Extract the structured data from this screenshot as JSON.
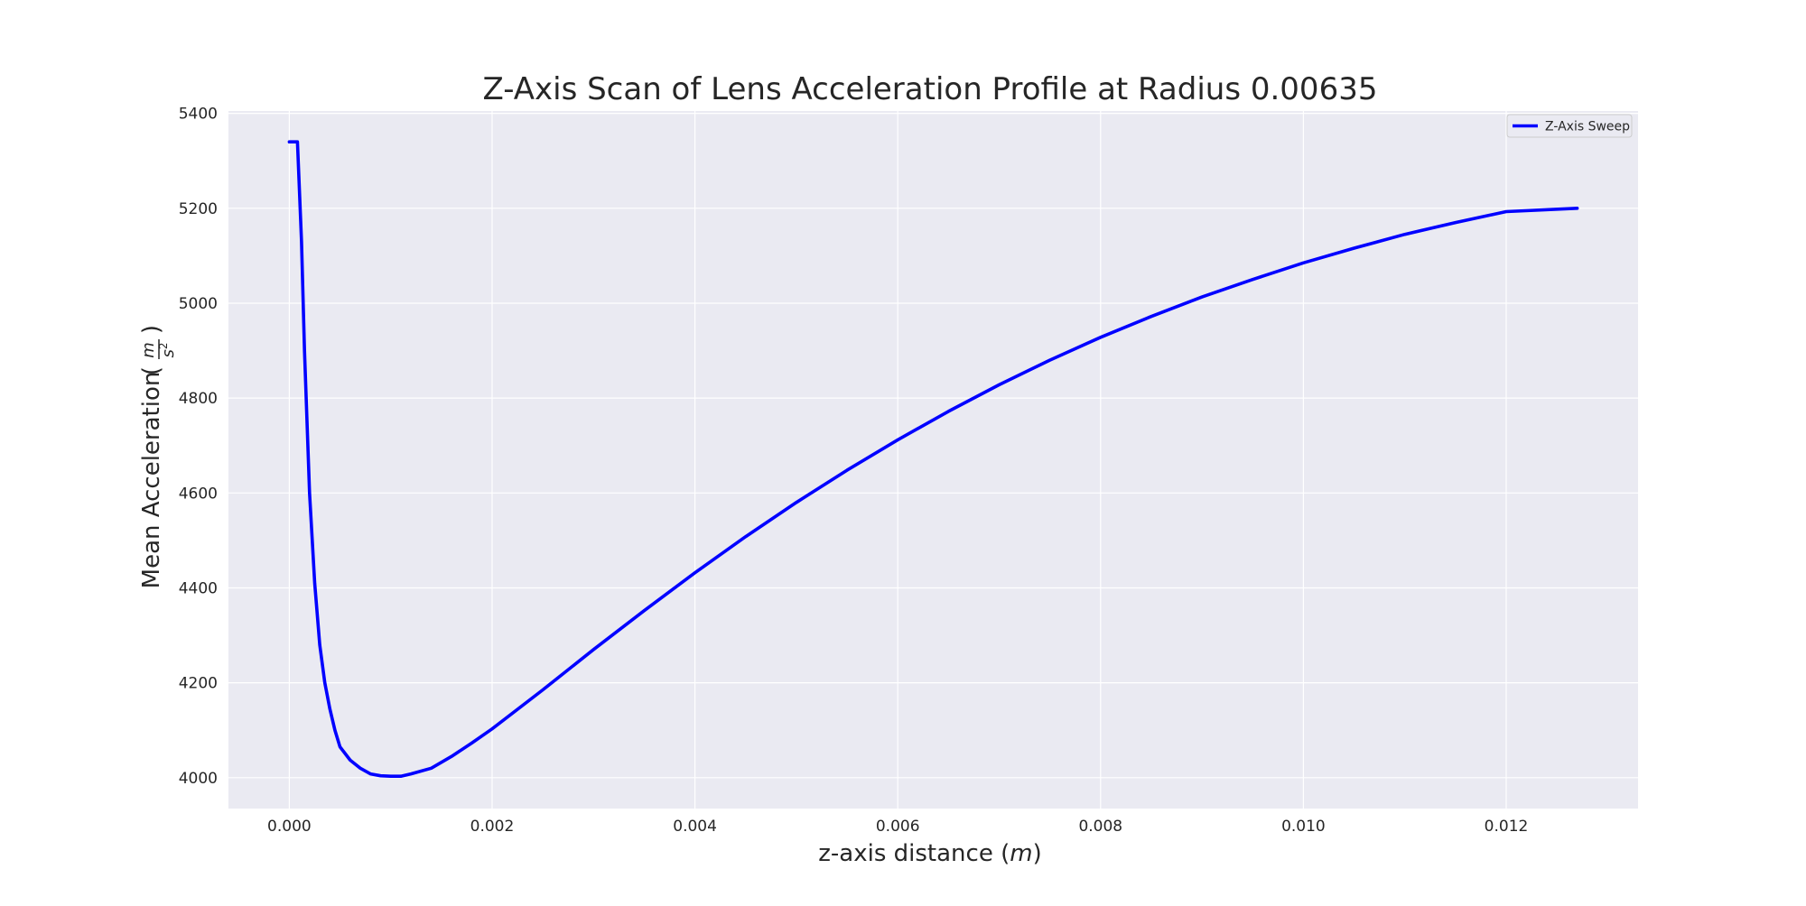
{
  "chart_data": {
    "type": "line",
    "title": "Z-Axis Scan of Lens Acceleration Profile at Radius 0.00635",
    "xlabel": "z-axis distance",
    "xlabel_unit": "m",
    "ylabel": "Mean Acceleration",
    "ylabel_unit_numerator": "m",
    "ylabel_unit_denominator": "s",
    "ylabel_unit_exponent": "2",
    "xlim": [
      -0.0006,
      0.0133
    ],
    "ylim": [
      3935,
      5405
    ],
    "x_ticks": [
      0.0,
      0.002,
      0.004,
      0.006,
      0.008,
      0.01,
      0.012
    ],
    "x_tick_labels": [
      "0.000",
      "0.002",
      "0.004",
      "0.006",
      "0.008",
      "0.010",
      "0.012"
    ],
    "y_ticks": [
      4000,
      4200,
      4400,
      4600,
      4800,
      5000,
      5200,
      5400
    ],
    "y_tick_labels": [
      "4000",
      "4200",
      "4400",
      "4600",
      "4800",
      "5000",
      "5200",
      "5400"
    ],
    "grid": true,
    "legend_position": "top-right",
    "background_color": "#eaeaf2",
    "grid_color": "#ffffff",
    "series": [
      {
        "name": "Z-Axis Sweep",
        "color": "#0000ff",
        "x": [
          0.0,
          8e-05,
          0.00012,
          0.00015,
          0.0002,
          0.00025,
          0.0003,
          0.00035,
          0.0004,
          0.00045,
          0.0005,
          0.0006,
          0.0007,
          0.0008,
          0.0009,
          0.001,
          0.0011,
          0.0012,
          0.0014,
          0.0016,
          0.0018,
          0.002,
          0.0025,
          0.003,
          0.0035,
          0.004,
          0.0045,
          0.005,
          0.0055,
          0.006,
          0.0065,
          0.007,
          0.0075,
          0.008,
          0.0085,
          0.009,
          0.0095,
          0.01,
          0.0105,
          0.011,
          0.0115,
          0.012,
          0.0127
        ],
        "y": [
          5340,
          5340,
          5130,
          4900,
          4600,
          4410,
          4280,
          4200,
          4145,
          4100,
          4065,
          4037,
          4020,
          4008,
          4004,
          4003,
          4003,
          4008,
          4020,
          4045,
          4073,
          4103,
          4185,
          4270,
          4352,
          4432,
          4508,
          4580,
          4648,
          4712,
          4772,
          4828,
          4880,
          4928,
          4972,
          5013,
          5050,
          5085,
          5116,
          5145,
          5170,
          5193,
          5200
        ]
      }
    ]
  }
}
